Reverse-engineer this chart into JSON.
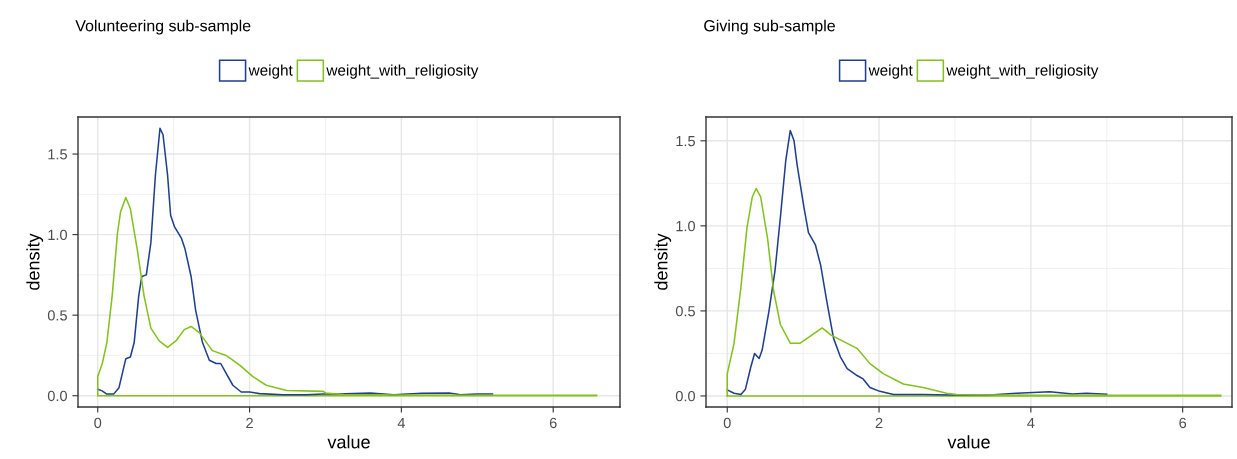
{
  "chart_data": [
    {
      "type": "line",
      "title": "Volunteering sub-sample",
      "xlabel": "value",
      "ylabel": "density",
      "legend": "top",
      "grid": true,
      "xlim": [
        -0.26,
        6.88
      ],
      "ylim": [
        -0.07,
        1.73
      ],
      "xticks": [
        0,
        2,
        4,
        6
      ],
      "ref_lines": [
        {
          "axis": "y",
          "value": 0,
          "color": "#84c11c"
        }
      ],
      "yticks": [
        {
          "value": 0,
          "label": "0.0"
        },
        {
          "value": 0.5,
          "label": "0.5"
        },
        {
          "value": 1.0,
          "label": "1.0"
        },
        {
          "value": 1.5,
          "label": "1.5"
        }
      ],
      "series": [
        {
          "name": "weight",
          "color": "#1f3f8c",
          "x": [
            0,
            0.057,
            0.12,
            0.21,
            0.28,
            0.37,
            0.43,
            0.48,
            0.54,
            0.58,
            0.64,
            0.7,
            0.76,
            0.82,
            0.86,
            0.92,
            0.96,
            1.01,
            1.1,
            1.15,
            1.23,
            1.29,
            1.38,
            1.47,
            1.56,
            1.62,
            1.69,
            1.78,
            1.89,
            2.0,
            2.13,
            2.44,
            2.75,
            2.97,
            3.15,
            3.59,
            3.9,
            4.27,
            4.63,
            4.78,
            5.0,
            5.2
          ],
          "values": [
            0.04,
            0.03,
            0.01,
            0.01,
            0.05,
            0.23,
            0.24,
            0.33,
            0.62,
            0.74,
            0.75,
            0.95,
            1.37,
            1.66,
            1.62,
            1.37,
            1.12,
            1.05,
            0.98,
            0.91,
            0.74,
            0.53,
            0.33,
            0.22,
            0.2,
            0.2,
            0.14,
            0.065,
            0.023,
            0.023,
            0.013,
            0.006,
            0.006,
            0.01,
            0.01,
            0.017,
            0.006,
            0.015,
            0.017,
            0.006,
            0.01,
            0.01
          ]
        },
        {
          "name": "weight_with_religiosity",
          "color": "#84c11c",
          "x": [
            0,
            0,
            0.06,
            0.12,
            0.19,
            0.26,
            0.3,
            0.37,
            0.43,
            0.52,
            0.61,
            0.7,
            0.81,
            0.92,
            1.03,
            1.14,
            1.23,
            1.34,
            1.51,
            1.69,
            1.87,
            2.04,
            2.22,
            2.49,
            2.97,
            3.0,
            3.24,
            4.0,
            5.0,
            6.0,
            6.57
          ],
          "values": [
            0,
            0.12,
            0.2,
            0.33,
            0.62,
            1.01,
            1.14,
            1.23,
            1.16,
            0.91,
            0.62,
            0.42,
            0.34,
            0.3,
            0.34,
            0.41,
            0.43,
            0.39,
            0.28,
            0.25,
            0.19,
            0.12,
            0.065,
            0.033,
            0.027,
            0.017,
            0.008,
            0.004,
            0.003,
            0.003,
            0.003
          ]
        }
      ]
    },
    {
      "type": "line",
      "title": "Giving sub-sample",
      "xlabel": "value",
      "ylabel": "density",
      "legend": "top",
      "grid": true,
      "xlim": [
        -0.28,
        6.65
      ],
      "ylim": [
        -0.065,
        1.64
      ],
      "xticks": [
        0,
        2,
        4,
        6
      ],
      "ref_lines": [
        {
          "axis": "y",
          "value": 0,
          "color": "#84c11c"
        }
      ],
      "yticks": [
        {
          "value": 0,
          "label": "0.0"
        },
        {
          "value": 0.5,
          "label": "0.5"
        },
        {
          "value": 1.0,
          "label": "1.0"
        },
        {
          "value": 1.5,
          "label": "1.5"
        }
      ],
      "series": [
        {
          "name": "weight",
          "color": "#1f3f8c",
          "x": [
            0,
            0.09,
            0.18,
            0.24,
            0.31,
            0.36,
            0.42,
            0.46,
            0.55,
            0.63,
            0.7,
            0.77,
            0.83,
            0.88,
            0.92,
            1.01,
            1.07,
            1.16,
            1.23,
            1.31,
            1.4,
            1.49,
            1.58,
            1.71,
            1.79,
            1.88,
            2.01,
            2.19,
            2.58,
            2.93,
            3.46,
            3.81,
            4.25,
            4.55,
            4.73,
            5.0
          ],
          "values": [
            0.035,
            0.016,
            0.008,
            0.04,
            0.17,
            0.25,
            0.22,
            0.27,
            0.5,
            0.74,
            1.05,
            1.38,
            1.56,
            1.5,
            1.36,
            1.11,
            0.96,
            0.89,
            0.77,
            0.56,
            0.34,
            0.23,
            0.16,
            0.12,
            0.1,
            0.05,
            0.027,
            0.008,
            0.008,
            0.006,
            0.006,
            0.016,
            0.025,
            0.012,
            0.016,
            0.01
          ]
        },
        {
          "name": "weight_with_religiosity",
          "color": "#84c11c",
          "x": [
            0,
            0,
            0.09,
            0.18,
            0.26,
            0.33,
            0.38,
            0.44,
            0.53,
            0.61,
            0.7,
            0.83,
            0.96,
            1.09,
            1.25,
            1.36,
            1.49,
            1.71,
            1.88,
            2.06,
            2.32,
            2.58,
            2.89,
            3.02,
            4.0,
            5.0,
            6.5
          ],
          "values": [
            0,
            0.13,
            0.31,
            0.64,
            0.99,
            1.17,
            1.22,
            1.17,
            0.93,
            0.62,
            0.42,
            0.31,
            0.31,
            0.35,
            0.4,
            0.36,
            0.33,
            0.28,
            0.19,
            0.13,
            0.07,
            0.05,
            0.016,
            0.008,
            0.004,
            0.004,
            0.004
          ]
        }
      ]
    }
  ]
}
